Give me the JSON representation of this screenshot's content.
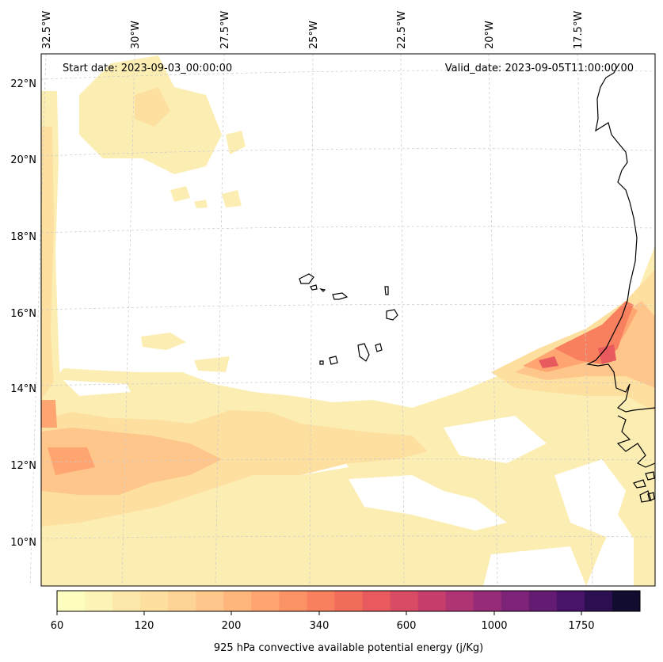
{
  "header": {
    "start_date": "Start date: 2023-09-03_00:00:00",
    "valid_date": "Valid_date: 2023-09-05T11:00:00.00"
  },
  "axes": {
    "longitude_labels": [
      "32.5°W",
      "30°W",
      "27.5°W",
      "25°W",
      "22.5°W",
      "20°W",
      "17.5°W"
    ],
    "latitude_labels": [
      "22°N",
      "20°N",
      "18°N",
      "16°N",
      "14°N",
      "12°N",
      "10°N"
    ]
  },
  "colorbar": {
    "tick_labels": [
      "60",
      "120",
      "200",
      "340",
      "600",
      "1000",
      "1750"
    ],
    "label": "925 hPa convective available potential energy (j/Kg)",
    "colors": [
      "#fcfdbf",
      "#fcf4b6",
      "#fce9aa",
      "#fddfa0",
      "#fed396",
      "#fec68a",
      "#feb67c",
      "#fea571",
      "#fc9366",
      "#f8805e",
      "#f26c5b",
      "#e85a5d",
      "#d94b64",
      "#c53e6c",
      "#af3473",
      "#962b77",
      "#7d2478",
      "#631c72",
      "#47146a",
      "#2b0f50",
      "#120c2e"
    ]
  },
  "map": {
    "colors": {
      "level1": "#fceeb3",
      "level2": "#fddfa0",
      "level3": "#fec68a",
      "level4": "#fea571",
      "level5": "#f8805e",
      "level6": "#e85a5d",
      "coastline": "#000000",
      "gridline": "#c8c8c8"
    }
  }
}
